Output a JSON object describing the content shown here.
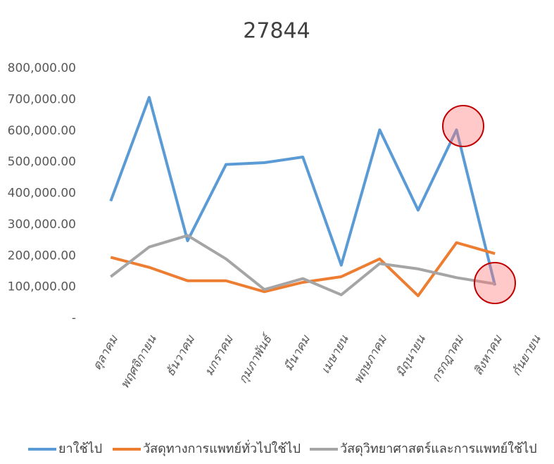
{
  "chart_data": {
    "type": "line",
    "title": "27844",
    "categories": [
      "ตุลาคม",
      "พฤศจิกายน",
      "ธันวาคม",
      "มกราคม",
      "กุมภาพันธ์",
      "มีนาคม",
      "เมษายน",
      "พฤษภาคม",
      "มิถุนายน",
      "กรกฎาคม",
      "สิงหาคม",
      "กันยายน"
    ],
    "series": [
      {
        "name": "ยาใช้ไป",
        "color": "#5b9bd5",
        "values": [
          375000,
          707000,
          248000,
          492000,
          498000,
          516000,
          170000,
          603000,
          346000,
          603000,
          105000,
          null
        ]
      },
      {
        "name": "วัสดุทางการแพทย์ทั่วไปใช้ไป",
        "color": "#ed7d31",
        "values": [
          195000,
          163000,
          120000,
          120000,
          85000,
          115000,
          133000,
          190000,
          72000,
          242000,
          207000,
          null
        ]
      },
      {
        "name": "วัสดุวิทยาศาสตร์และการแพทย์ใช้ไป",
        "color": "#a5a5a5",
        "values": [
          133000,
          228000,
          265000,
          190000,
          92000,
          127000,
          75000,
          175000,
          158000,
          130000,
          110000,
          null
        ]
      }
    ],
    "ylim": [
      0,
      800000
    ],
    "yticks": [
      {
        "value": 0,
        "label": "-"
      },
      {
        "value": 100000,
        "label": "100,000.00"
      },
      {
        "value": 200000,
        "label": "200,000.00"
      },
      {
        "value": 300000,
        "label": "300,000.00"
      },
      {
        "value": 400000,
        "label": "400,000.00"
      },
      {
        "value": 500000,
        "label": "500,000.00"
      },
      {
        "value": 600000,
        "label": "600,000.00"
      },
      {
        "value": 700000,
        "label": "700,000.00"
      },
      {
        "value": 800000,
        "label": "800,000.00"
      }
    ],
    "grid": false,
    "legend": "bottom"
  }
}
